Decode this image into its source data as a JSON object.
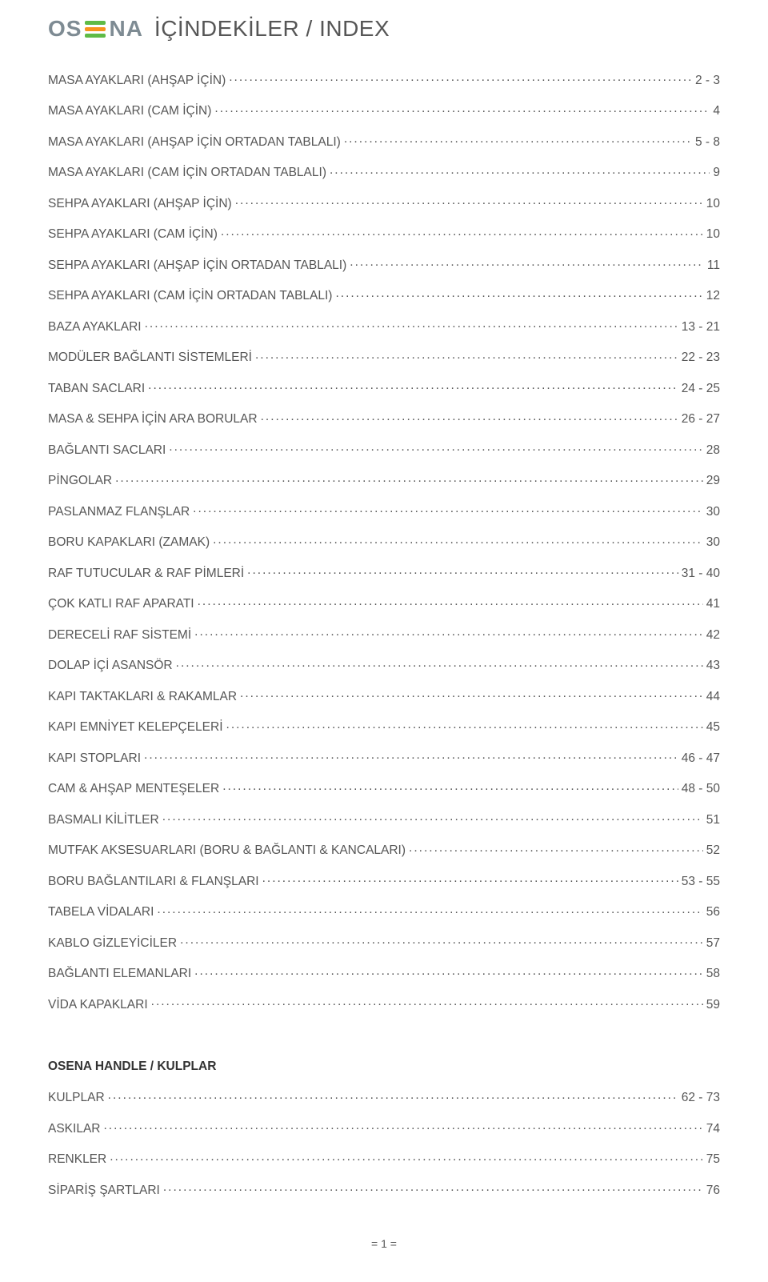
{
  "logo": {
    "pre_text": "OS",
    "post_text": "NA",
    "bar_colors": [
      "#5fbb46",
      "#f7941d",
      "#5fbb46"
    ]
  },
  "title": "İÇİNDEKİLER / INDEX",
  "toc": [
    {
      "label": "MASA AYAKLARI (AHŞAP İÇİN)",
      "page": "2 - 3"
    },
    {
      "label": "MASA AYAKLARI (CAM İÇİN)",
      "page": "4"
    },
    {
      "label": "MASA AYAKLARI (AHŞAP İÇİN ORTADAN TABLALI)",
      "page": "5 - 8"
    },
    {
      "label": "MASA AYAKLARI (CAM İÇİN ORTADAN TABLALI)",
      "page": "9"
    },
    {
      "label": "SEHPA AYAKLARI (AHŞAP İÇİN)",
      "page": "10"
    },
    {
      "label": "SEHPA AYAKLARI (CAM İÇİN)",
      "page": "10"
    },
    {
      "label": "SEHPA AYAKLARI (AHŞAP İÇİN ORTADAN TABLALI)",
      "page": "11"
    },
    {
      "label": "SEHPA AYAKLARI (CAM İÇİN ORTADAN TABLALI)",
      "page": "12"
    },
    {
      "label": "BAZA AYAKLARI",
      "page": "13 - 21"
    },
    {
      "label": "MODÜLER BAĞLANTI SİSTEMLERİ",
      "page": "22 - 23"
    },
    {
      "label": "TABAN SACLARI",
      "page": "24 - 25"
    },
    {
      "label": "MASA & SEHPA İÇİN ARA BORULAR",
      "page": "26 - 27"
    },
    {
      "label": "BAĞLANTI SACLARI",
      "page": "28"
    },
    {
      "label": "PİNGOLAR",
      "page": "29"
    },
    {
      "label": "PASLANMAZ FLANŞLAR",
      "page": "30"
    },
    {
      "label": "BORU KAPAKLARI (ZAMAK)",
      "page": "30"
    },
    {
      "label": "RAF TUTUCULAR & RAF PİMLERİ",
      "page": "31 - 40"
    },
    {
      "label": "ÇOK KATLI RAF APARATI",
      "page": "41"
    },
    {
      "label": "DERECELİ RAF SİSTEMİ",
      "page": "42"
    },
    {
      "label": "DOLAP İÇİ ASANSÖR",
      "page": "43"
    },
    {
      "label": "KAPI TAKTAKLARI & RAKAMLAR",
      "page": "44"
    },
    {
      "label": "KAPI EMNİYET KELEPÇELERİ",
      "page": "45"
    },
    {
      "label": "KAPI STOPLARI",
      "page": "46 - 47"
    },
    {
      "label": "CAM & AHŞAP MENTEŞELER",
      "page": "48 - 50"
    },
    {
      "label": "BASMALI KİLİTLER",
      "page": "51"
    },
    {
      "label": "MUTFAK AKSESUARLARI (BORU & BAĞLANTI & KANCALARI)",
      "page": "52"
    },
    {
      "label": "BORU BAĞLANTILARI & FLANŞLARI",
      "page": "53 - 55"
    },
    {
      "label": "TABELA VİDALARI",
      "page": "56"
    },
    {
      "label": "KABLO GİZLEYİCİLER",
      "page": "57"
    },
    {
      "label": "BAĞLANTI ELEMANLARI",
      "page": "58"
    },
    {
      "label": "VİDA KAPAKLARI",
      "page": "59"
    }
  ],
  "section_heading": "OSENA HANDLE / KULPLAR",
  "toc2": [
    {
      "label": "KULPLAR",
      "page": "62 - 73"
    },
    {
      "label": "ASKILAR",
      "page": "74"
    },
    {
      "label": "RENKLER",
      "page": "75"
    },
    {
      "label": "SİPARİŞ ŞARTLARI",
      "page": "76"
    }
  ],
  "footer_page": "= 1 =",
  "colors": {
    "text": "#565656",
    "heading": "#333333",
    "background": "#ffffff",
    "logo_text": "#7e8b93"
  },
  "typography": {
    "body_fontsize_pt": 12,
    "title_fontsize_pt": 21,
    "font_family": "Arial"
  }
}
